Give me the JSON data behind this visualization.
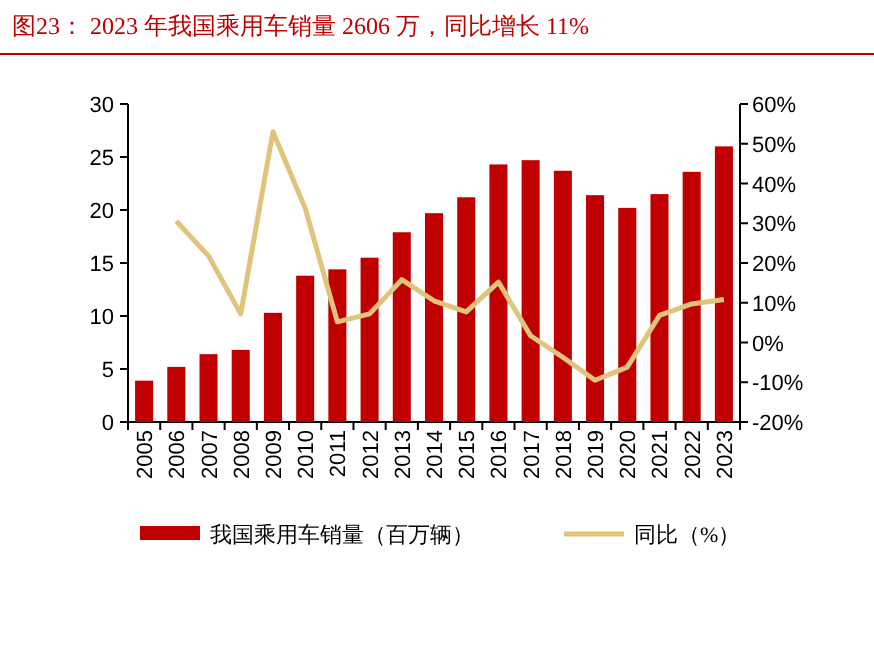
{
  "chart_data": {
    "type": "bar",
    "title": "图23：  2023 年我国乘用车销量 2606 万，同比增长 11%",
    "categories": [
      "2005",
      "2006",
      "2007",
      "2008",
      "2009",
      "2010",
      "2011",
      "2012",
      "2013",
      "2014",
      "2015",
      "2016",
      "2017",
      "2018",
      "2019",
      "2020",
      "2021",
      "2022",
      "2023"
    ],
    "series": [
      {
        "name": "我国乘用车销量（百万辆）",
        "color": "#c00000",
        "values": [
          3.9,
          5.2,
          6.4,
          6.8,
          10.3,
          13.8,
          14.4,
          15.5,
          17.9,
          19.7,
          21.2,
          24.3,
          24.7,
          23.7,
          21.4,
          20.2,
          21.5,
          23.6,
          26.0
        ]
      },
      {
        "name": "同比（%）",
        "type": "line",
        "axis": "y2",
        "color": "#e0c47c",
        "values": [
          null,
          30.5,
          21.8,
          7.2,
          53,
          33.8,
          5.2,
          7.2,
          15.8,
          10.5,
          7.7,
          15.2,
          1.7,
          -3.7,
          -9.5,
          -6.2,
          6.8,
          9.7,
          10.8
        ]
      }
    ],
    "ylim": [
      0,
      30
    ],
    "yticks": [
      0,
      5,
      10,
      15,
      20,
      25,
      30
    ],
    "y2lim": [
      -20,
      60
    ],
    "y2ticks": [
      {
        "value": -20,
        "label": "-20%"
      },
      {
        "value": -10,
        "label": "-10%"
      },
      {
        "value": 0,
        "label": "0%"
      },
      {
        "value": 10,
        "label": "10%"
      },
      {
        "value": 20,
        "label": "20%"
      },
      {
        "value": 30,
        "label": "30%"
      },
      {
        "value": 40,
        "label": "40%"
      },
      {
        "value": 50,
        "label": "50%"
      },
      {
        "value": 60,
        "label": "60%"
      }
    ],
    "legend": "bottom",
    "grid": false
  }
}
